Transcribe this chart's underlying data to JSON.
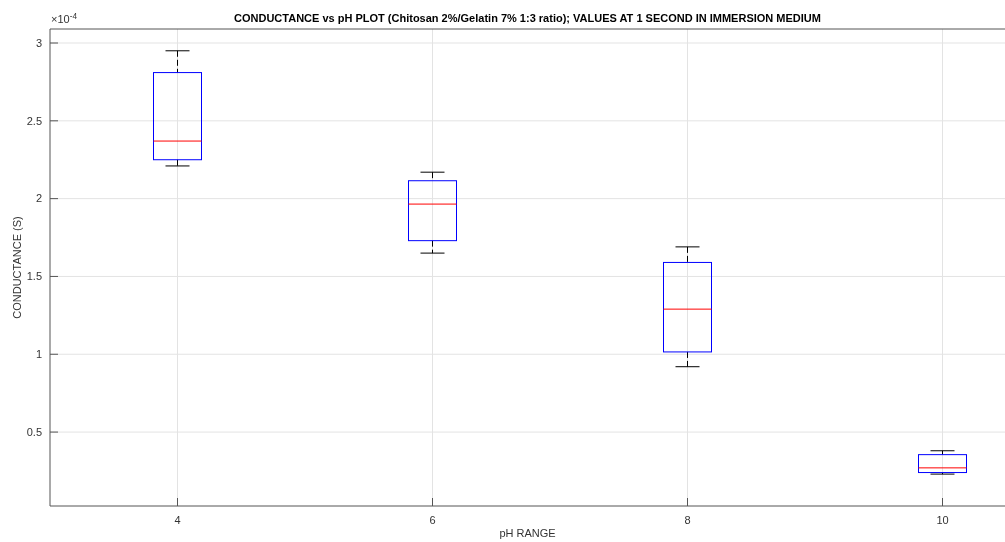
{
  "chart_data": {
    "type": "box",
    "title": "CONDUCTANCE vs pH PLOT (Chitosan 2%/Gelatin 7% 1:3 ratio); VALUES AT 1 SECOND IN IMMERSION MEDIUM",
    "xlabel": "pH RANGE",
    "ylabel": "CONDUCTANCE (S)",
    "annotations": [
      "×10$^{-4}$"
    ],
    "categories": [
      "4",
      "6",
      "8",
      "10"
    ],
    "series": [
      {
        "color": "#0000ff",
        "boxes": [
          {
            "low": 2.21,
            "q1": 2.25,
            "median": 2.37,
            "q3": 2.81,
            "high": 2.95
          },
          {
            "low": 1.65,
            "q1": 1.73,
            "median": 1.965,
            "q3": 2.115,
            "high": 2.17
          },
          {
            "low": 0.92,
            "q1": 1.015,
            "median": 1.29,
            "q3": 1.59,
            "high": 1.69
          },
          {
            "low": 0.23,
            "q1": 0.24,
            "median": 0.27,
            "q3": 0.355,
            "high": 0.38
          }
        ]
      }
    ],
    "ylim": [
      0.025,
      3.09
    ],
    "yticks": [
      0.5,
      1,
      1.5,
      2,
      2.5,
      3
    ],
    "grid": true
  }
}
